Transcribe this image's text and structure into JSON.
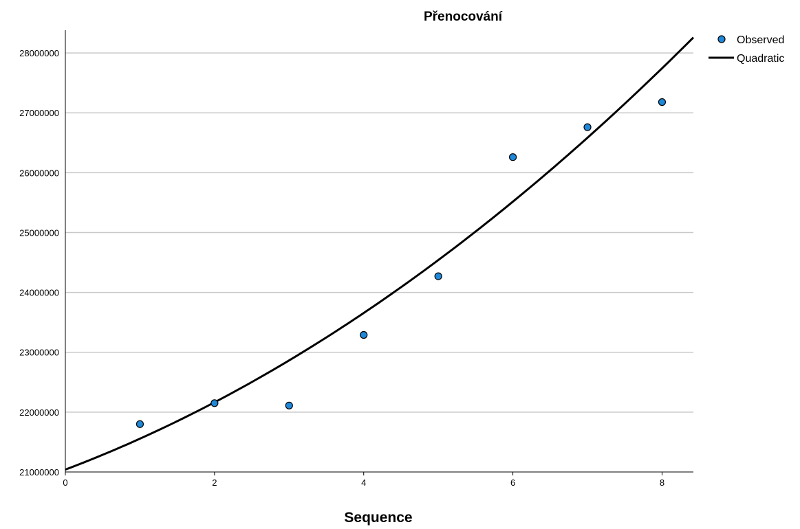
{
  "chart_data": {
    "type": "scatter",
    "title": "Přenocování",
    "xlabel": "Sequence",
    "ylabel": "",
    "xlim": [
      0,
      8.42
    ],
    "ylim": [
      21000000,
      28380000
    ],
    "xticks": [
      0,
      2,
      4,
      6,
      8
    ],
    "yticks": [
      21000000,
      22000000,
      23000000,
      24000000,
      25000000,
      26000000,
      27000000,
      28000000
    ],
    "xtick_labels": [
      "0",
      "2",
      "4",
      "6",
      "8"
    ],
    "ytick_labels": [
      "21000000",
      "22000000",
      "23000000",
      "24000000",
      "25000000",
      "26000000",
      "27000000",
      "28000000"
    ],
    "grid": "horizontal",
    "legend_position": "top-right",
    "series": [
      {
        "name": "Observed",
        "kind": "scatter",
        "color": "#1f88d8",
        "x": [
          1,
          2,
          3,
          4,
          5,
          6,
          7,
          8
        ],
        "y": [
          21800000,
          22150000,
          22110000,
          23290000,
          24270000,
          26260000,
          26760000,
          27180000
        ]
      },
      {
        "name": "Quadratic",
        "kind": "line",
        "color": "#000000",
        "model": {
          "intercept": 21040000,
          "b1": 470000,
          "b2": 46000
        }
      }
    ]
  }
}
